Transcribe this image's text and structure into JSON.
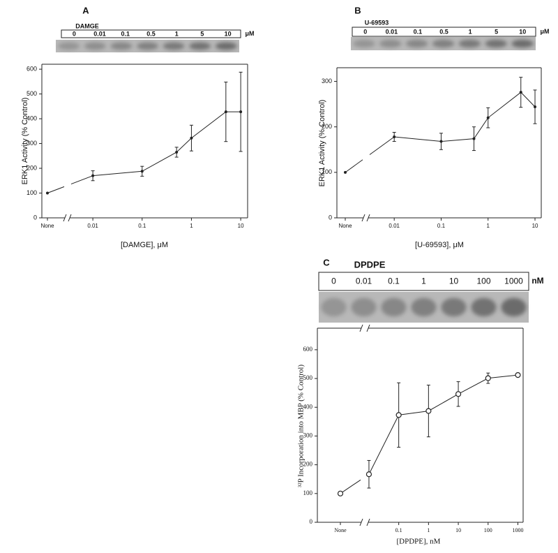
{
  "chart_data": [
    {
      "type": "line",
      "panel": "A",
      "blot_title": "DAMGE",
      "blot_lanes": [
        "0",
        "0.01",
        "0.1",
        "0.5",
        "1",
        "5",
        "10"
      ],
      "blot_unit": "μM",
      "xlabel": "[DAMGE], μM",
      "ylabel": "ERK1 Activity (% Control)",
      "control": {
        "label": "None",
        "value": 100
      },
      "x": [
        0.01,
        0.1,
        0.5,
        1,
        5,
        10
      ],
      "values": [
        170,
        188,
        265,
        322,
        428,
        428
      ],
      "errors": [
        20,
        20,
        20,
        52,
        120,
        160
      ],
      "log_x": true,
      "xlim": [
        0.0034,
        13.8
      ],
      "xticks": [
        0.01,
        0.1,
        1,
        10
      ],
      "ylim": [
        0,
        620
      ],
      "yticks": [
        0,
        100,
        200,
        300,
        400,
        500,
        600
      ],
      "marker": "dot",
      "color": "#222"
    },
    {
      "type": "line",
      "panel": "B",
      "blot_title": "U-69593",
      "blot_lanes": [
        "0",
        "0.01",
        "0.1",
        "0.5",
        "1",
        "5",
        "10"
      ],
      "blot_unit": "μM",
      "xlabel": "[U-69593], μM",
      "ylabel": "ERK1 Activity (% Control)",
      "control": {
        "label": "None",
        "value": 100
      },
      "x": [
        0.01,
        0.1,
        0.5,
        1,
        5,
        10
      ],
      "values": [
        178,
        168,
        174,
        220,
        276,
        244
      ],
      "errors": [
        10,
        18,
        26,
        22,
        33,
        37
      ],
      "log_x": true,
      "xlim": [
        0.0028,
        13.6
      ],
      "xticks": [
        0.01,
        0.1,
        1,
        10
      ],
      "ylim": [
        0,
        330
      ],
      "yticks": [
        0,
        100,
        200,
        300
      ],
      "marker": "dot",
      "color": "#222"
    },
    {
      "type": "line",
      "panel": "C",
      "blot_title": "DPDPE",
      "blot_lanes": [
        "0",
        "0.01",
        "0.1",
        "1",
        "10",
        "100",
        "1000"
      ],
      "blot_unit": "nM",
      "xlabel": "[DPDPE], nM",
      "ylabel": "³²P Incorporation into MBP (% Control)",
      "control": {
        "label": "None",
        "value": 100
      },
      "x": [
        0.01,
        0.1,
        1,
        10,
        100,
        1000
      ],
      "values": [
        167,
        373,
        387,
        446,
        501,
        512
      ],
      "errors": [
        48,
        112,
        90,
        43,
        18,
        5
      ],
      "log_x": true,
      "xlim": [
        0.0095,
        1500
      ],
      "xticks": [
        0.1,
        1,
        10,
        100,
        1000
      ],
      "ylim": [
        0,
        675
      ],
      "yticks": [
        0,
        100,
        200,
        300,
        400,
        500,
        600
      ],
      "marker": "circle-open",
      "color": "#222"
    }
  ]
}
